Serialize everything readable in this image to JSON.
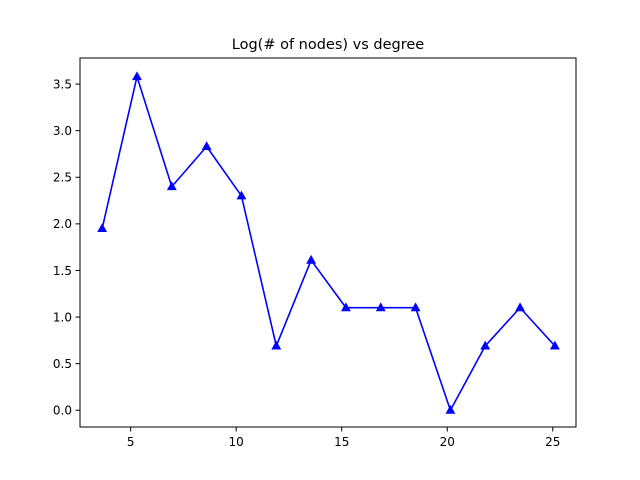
{
  "chart_data": {
    "type": "line",
    "title": "Log(# of nodes) vs degree",
    "xlabel": "",
    "ylabel": "",
    "xlim": [
      2.6,
      26.1
    ],
    "ylim": [
      -0.18,
      3.78
    ],
    "xticks": [
      5,
      10,
      15,
      20,
      25
    ],
    "xtick_labels": [
      "5",
      "10",
      "15",
      "20",
      "25"
    ],
    "yticks": [
      0.0,
      0.5,
      1.0,
      1.5,
      2.0,
      2.5,
      3.0,
      3.5
    ],
    "ytick_labels": [
      "0.0",
      "0.5",
      "1.0",
      "1.5",
      "2.0",
      "2.5",
      "3.0",
      "3.5"
    ],
    "grid": false,
    "legend": "none",
    "series": [
      {
        "color": "#0000ff",
        "marker": "triangle-up",
        "x": [
          3.65,
          5.3,
          6.95,
          8.6,
          10.25,
          11.9,
          13.55,
          15.2,
          16.85,
          18.5,
          20.15,
          21.8,
          23.45,
          25.1
        ],
        "y": [
          1.95,
          3.58,
          2.4,
          2.83,
          2.3,
          0.69,
          1.61,
          1.1,
          1.1,
          1.1,
          0.0,
          0.69,
          1.1,
          0.69
        ]
      }
    ]
  }
}
